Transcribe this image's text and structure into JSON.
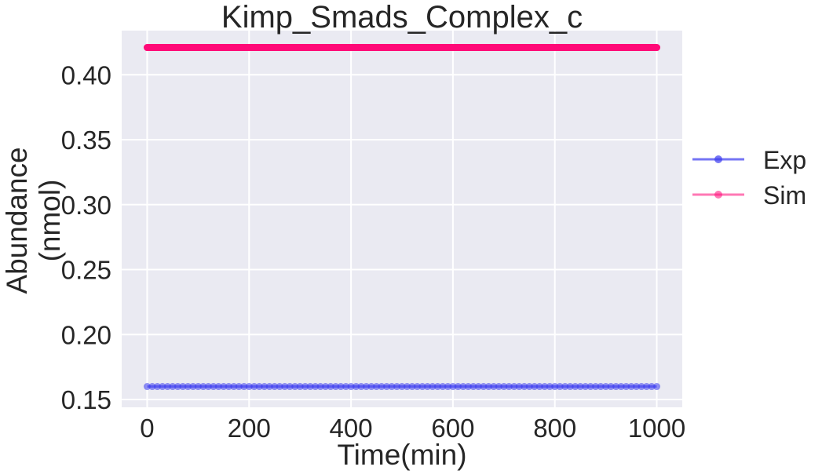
{
  "chart_data": {
    "type": "line",
    "title": "Kimp_Smads_Complex_c",
    "xlabel": "Time(min)",
    "ylabel_lines": [
      "Abundance",
      "(nmol)"
    ],
    "xlim": [
      -50,
      1050
    ],
    "ylim": [
      0.144,
      0.434
    ],
    "x_ticks": [
      0,
      200,
      400,
      600,
      800,
      1000
    ],
    "x_tick_labels": [
      "0",
      "200",
      "400",
      "600",
      "800",
      "1000"
    ],
    "y_ticks": [
      0.15,
      0.2,
      0.25,
      0.3,
      0.35,
      0.4
    ],
    "y_tick_labels": [
      "0.15",
      "0.20",
      "0.25",
      "0.30",
      "0.35",
      "0.40"
    ],
    "grid": true,
    "legend_position": "right-outside",
    "background_color": "#eaeaf2",
    "series": [
      {
        "name": "Exp",
        "color": "#3b3bf0",
        "x_start": 0,
        "x_end": 1000,
        "x_step": 10,
        "value": 0.16,
        "marker_opacity": 0.55
      },
      {
        "name": "Sim",
        "color": "#ff0a78",
        "x_start": 0,
        "x_end": 1000,
        "x_step": 1,
        "value": 0.421,
        "marker_opacity": 1.0
      }
    ]
  }
}
